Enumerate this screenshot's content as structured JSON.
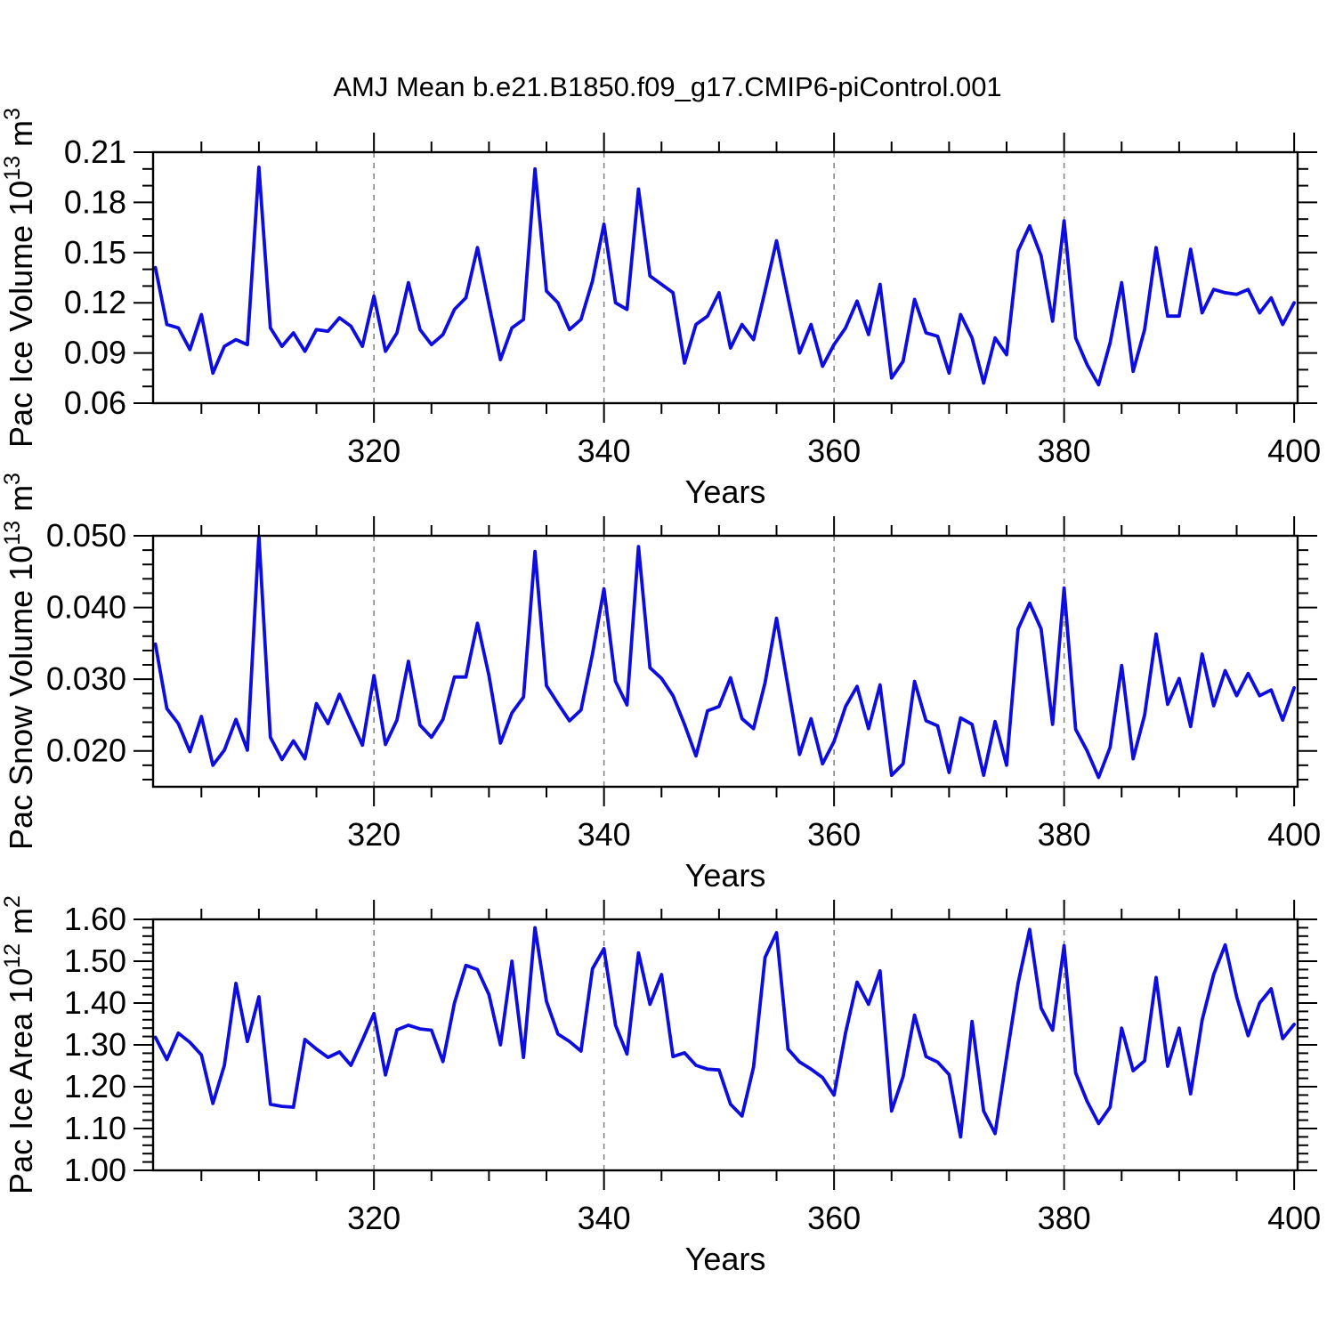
{
  "title": "AMJ Mean b.e21.B1850.f09_g17.CMIP6-piControl.001",
  "colors": {
    "line": "#0d0de0",
    "grid": "#7f7f7f",
    "axis": "#000000",
    "background": "#ffffff"
  },
  "x_axis": {
    "label": "Years",
    "xlim": [
      300.8,
      400.3
    ],
    "major_ticks": [
      320,
      340,
      360,
      380,
      400
    ],
    "minor_step": 5,
    "gridlines": [
      320,
      340,
      360,
      380
    ],
    "x_first": 301,
    "x_last": 400
  },
  "chart_data": [
    {
      "type": "line",
      "name": "pac-ice-volume",
      "title": "AMJ Mean b.e21.B1850.f09_g17.CMIP6-piControl.001",
      "xlabel": "Years",
      "ylabel": "Pac Ice Volume 10^13 m^3",
      "ylabel_parts": [
        {
          "t": "Pac Ice Volume 10",
          "sup": false
        },
        {
          "t": "13",
          "sup": true
        },
        {
          "t": " m",
          "sup": false
        },
        {
          "t": "3",
          "sup": true
        }
      ],
      "ylim": [
        0.06,
        0.21
      ],
      "ytick_labels": [
        "0.06",
        "0.09",
        "0.12",
        "0.15",
        "0.18",
        "0.21"
      ],
      "ytick_values": [
        0.06,
        0.09,
        0.12,
        0.15,
        0.18,
        0.21
      ],
      "yminor_step": 0.01,
      "x_start": 301,
      "values": [
        0.141,
        0.107,
        0.105,
        0.092,
        0.113,
        0.078,
        0.094,
        0.098,
        0.095,
        0.201,
        0.105,
        0.094,
        0.102,
        0.091,
        0.104,
        0.103,
        0.111,
        0.106,
        0.094,
        0.124,
        0.091,
        0.102,
        0.132,
        0.104,
        0.095,
        0.101,
        0.116,
        0.123,
        0.153,
        0.119,
        0.086,
        0.105,
        0.11,
        0.2,
        0.127,
        0.12,
        0.104,
        0.11,
        0.133,
        0.167,
        0.12,
        0.116,
        0.188,
        0.136,
        0.131,
        0.126,
        0.084,
        0.107,
        0.112,
        0.126,
        0.093,
        0.107,
        0.098,
        0.127,
        0.157,
        0.123,
        0.09,
        0.107,
        0.082,
        0.095,
        0.105,
        0.121,
        0.101,
        0.131,
        0.075,
        0.085,
        0.122,
        0.102,
        0.1,
        0.078,
        0.113,
        0.099,
        0.072,
        0.099,
        0.089,
        0.151,
        0.166,
        0.148,
        0.109,
        0.169,
        0.099,
        0.083,
        0.071,
        0.096,
        0.132,
        0.079,
        0.104,
        0.153,
        0.112,
        0.112,
        0.152,
        0.114,
        0.128,
        0.126,
        0.125,
        0.128,
        0.114,
        0.123,
        0.107,
        0.12
      ]
    },
    {
      "type": "line",
      "name": "pac-snow-volume",
      "xlabel": "Years",
      "ylabel": "Pac Snow Volume 10^13 m^3",
      "ylabel_parts": [
        {
          "t": "Pac Snow Volume 10",
          "sup": false
        },
        {
          "t": "13",
          "sup": true
        },
        {
          "t": " m",
          "sup": false
        },
        {
          "t": "3",
          "sup": true
        }
      ],
      "ylim": [
        0.015,
        0.05
      ],
      "ytick_labels": [
        "0.020",
        "0.030",
        "0.040",
        "0.050"
      ],
      "ytick_values": [
        0.02,
        0.03,
        0.04,
        0.05
      ],
      "yminor_step": 0.002,
      "x_start": 301,
      "values": [
        0.0349,
        0.0259,
        0.0238,
        0.0199,
        0.0248,
        0.018,
        0.0201,
        0.0244,
        0.0201,
        0.05,
        0.0219,
        0.0188,
        0.0214,
        0.0189,
        0.0266,
        0.0238,
        0.0279,
        0.0243,
        0.0208,
        0.0305,
        0.0209,
        0.0243,
        0.0325,
        0.0236,
        0.0219,
        0.0244,
        0.0303,
        0.0303,
        0.0378,
        0.0305,
        0.0211,
        0.0253,
        0.0275,
        0.0478,
        0.0291,
        0.0266,
        0.0242,
        0.0257,
        0.0335,
        0.0426,
        0.0297,
        0.0264,
        0.0485,
        0.0316,
        0.0301,
        0.0277,
        0.0237,
        0.0193,
        0.0256,
        0.0262,
        0.0302,
        0.0245,
        0.0231,
        0.0295,
        0.0385,
        0.029,
        0.0195,
        0.0245,
        0.0182,
        0.0213,
        0.0262,
        0.029,
        0.0231,
        0.0292,
        0.0166,
        0.0182,
        0.0297,
        0.0242,
        0.0235,
        0.017,
        0.0246,
        0.0237,
        0.0166,
        0.0241,
        0.018,
        0.037,
        0.0406,
        0.037,
        0.0237,
        0.0427,
        0.023,
        0.02,
        0.0163,
        0.0205,
        0.0319,
        0.0189,
        0.025,
        0.0363,
        0.0265,
        0.0301,
        0.0234,
        0.0335,
        0.0263,
        0.0312,
        0.0277,
        0.0308,
        0.0277,
        0.0285,
        0.0243,
        0.0288
      ]
    },
    {
      "type": "line",
      "name": "pac-ice-area",
      "xlabel": "Years",
      "ylabel": "Pac Ice Area 10^12 m^2",
      "ylabel_parts": [
        {
          "t": "Pac Ice Area 10",
          "sup": false
        },
        {
          "t": "12",
          "sup": true
        },
        {
          "t": " m",
          "sup": false
        },
        {
          "t": "2",
          "sup": true
        }
      ],
      "ylim": [
        1.0,
        1.6
      ],
      "ytick_labels": [
        "1.00",
        "1.10",
        "1.20",
        "1.30",
        "1.40",
        "1.50",
        "1.60"
      ],
      "ytick_values": [
        1.0,
        1.1,
        1.2,
        1.3,
        1.4,
        1.5,
        1.6
      ],
      "yminor_step": 0.02,
      "x_start": 301,
      "values": [
        1.318,
        1.265,
        1.328,
        1.306,
        1.276,
        1.16,
        1.251,
        1.447,
        1.308,
        1.415,
        1.158,
        1.153,
        1.151,
        1.313,
        1.29,
        1.27,
        1.283,
        1.251,
        1.311,
        1.375,
        1.228,
        1.336,
        1.347,
        1.338,
        1.335,
        1.26,
        1.4,
        1.49,
        1.48,
        1.42,
        1.3,
        1.5,
        1.27,
        1.58,
        1.404,
        1.326,
        1.308,
        1.285,
        1.482,
        1.53,
        1.347,
        1.278,
        1.52,
        1.397,
        1.468,
        1.272,
        1.281,
        1.251,
        1.242,
        1.24,
        1.158,
        1.13,
        1.247,
        1.509,
        1.568,
        1.29,
        1.259,
        1.242,
        1.222,
        1.18,
        1.329,
        1.45,
        1.397,
        1.477,
        1.142,
        1.224,
        1.371,
        1.272,
        1.259,
        1.229,
        1.08,
        1.356,
        1.142,
        1.088,
        1.27,
        1.447,
        1.576,
        1.388,
        1.335,
        1.537,
        1.233,
        1.165,
        1.112,
        1.151,
        1.34,
        1.238,
        1.262,
        1.461,
        1.249,
        1.34,
        1.183,
        1.359,
        1.468,
        1.539,
        1.415,
        1.322,
        1.4,
        1.434,
        1.315,
        1.349
      ]
    }
  ]
}
